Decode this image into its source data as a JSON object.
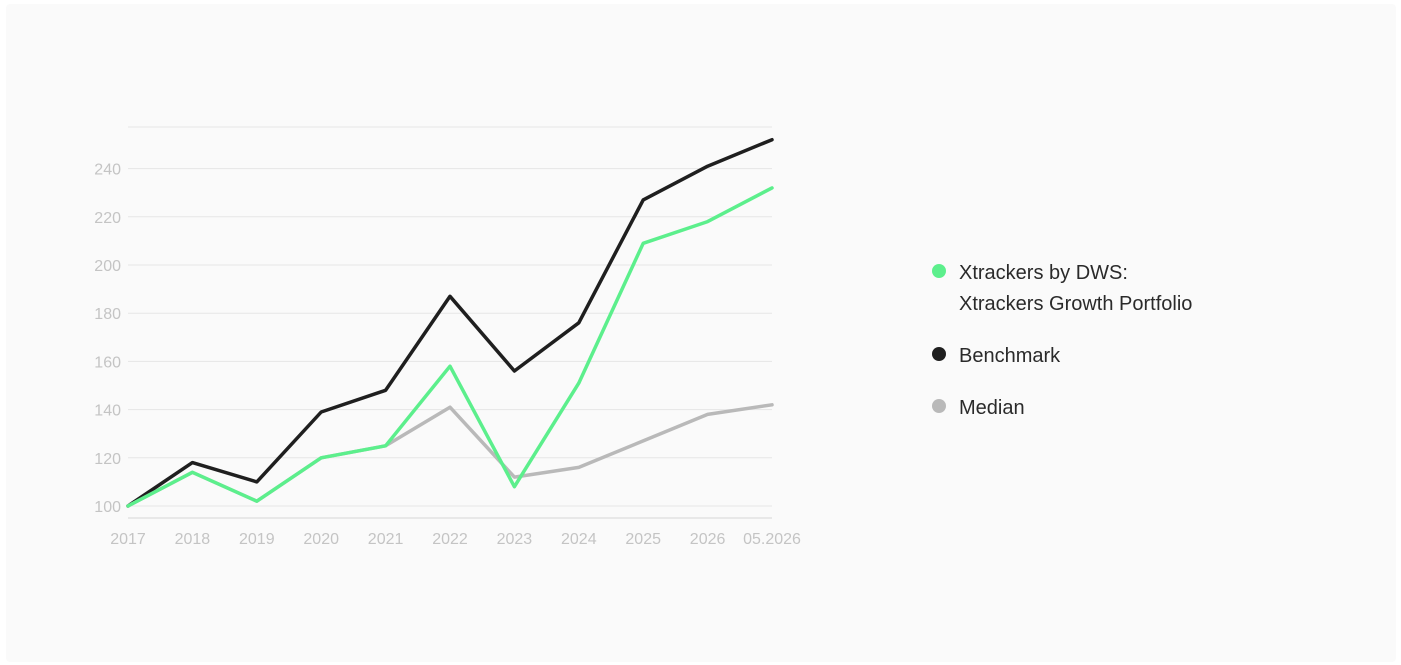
{
  "colors": {
    "portfolio": "#5cef8c",
    "benchmark": "#1f1f1f",
    "median": "#b9b9b9",
    "grid": "#e6e6e6",
    "tick": "#c4c4c4"
  },
  "legend": {
    "portfolio_line1": "Xtrackers by DWS:",
    "portfolio_line2": "Xtrackers Growth Portfolio",
    "benchmark": "Benchmark",
    "median": "Median"
  },
  "chart_data": {
    "type": "line",
    "x": [
      "2017",
      "2018",
      "2019",
      "2020",
      "2021",
      "2022",
      "2023",
      "2024",
      "2025",
      "2026",
      "05.2026"
    ],
    "y_ticks": [
      100,
      120,
      140,
      160,
      180,
      200,
      220,
      240
    ],
    "ylim": [
      100,
      255
    ],
    "grid": true,
    "legend_position": "right",
    "series": [
      {
        "key": "benchmark",
        "name": "Benchmark",
        "values": [
          100,
          118,
          110,
          139,
          148,
          187,
          156,
          176,
          227,
          241,
          252
        ]
      },
      {
        "key": "median",
        "name": "Median",
        "values": [
          100,
          114,
          102,
          120,
          125,
          141,
          112,
          116,
          127,
          138,
          142
        ]
      },
      {
        "key": "portfolio",
        "name": "Xtrackers by DWS: Xtrackers Growth Portfolio",
        "values": [
          100,
          114,
          102,
          120,
          125,
          158,
          108,
          151,
          209,
          218,
          232
        ]
      }
    ]
  }
}
